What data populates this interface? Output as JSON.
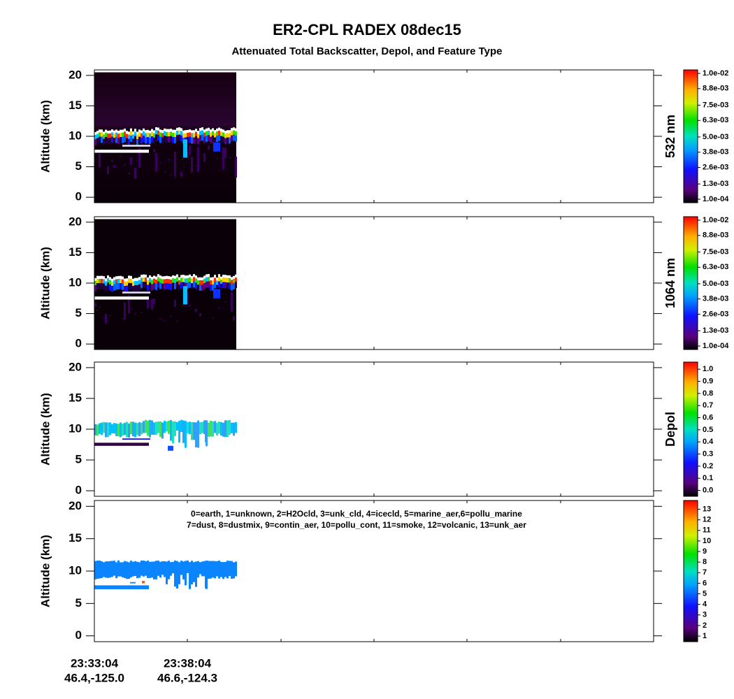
{
  "chart_data": {
    "type": "curtain",
    "title": "ER2-CPL  RADEX  08dec15",
    "subtitle": "Attenuated Total Backscatter, Depol, and Feature Type",
    "x_labels": [
      {
        "time": "23:33:04",
        "location": "46.4,-125.0"
      },
      {
        "time": "23:38:04",
        "location": "46.6,-124.3"
      }
    ],
    "annotation": [
      "0=earth, 1=unknown, 2=H2Ocld, 3=unk_cld, 4=icecld, 5=marine_aer,6=pollu_marine",
      "7=dust, 8=dustmix, 9=contin_aer, 10=pollu_cont, 11=smoke, 12=volcanic, 13=unk_aer"
    ],
    "panels": [
      {
        "ylabel": "Altitude (km)",
        "ylim": [
          -0.9,
          20.9
        ],
        "yticks": [
          0,
          5,
          10,
          15,
          20
        ],
        "colorbar_label": "532 nm",
        "clim": [
          0.0001,
          0.01
        ],
        "colorbar_ticks": [
          {
            "value": 0.0001,
            "label": "1.0e-04"
          },
          {
            "value": 0.0013,
            "label": "1.3e-03"
          },
          {
            "value": 0.0026,
            "label": "2.6e-03"
          },
          {
            "value": 0.0038,
            "label": "3.8e-03"
          },
          {
            "value": 0.005,
            "label": "5.0e-03"
          },
          {
            "value": 0.0063,
            "label": "6.3e-03"
          },
          {
            "value": 0.0075,
            "label": "7.5e-03"
          },
          {
            "value": 0.0088,
            "label": "8.8e-03"
          },
          {
            "value": 0.01,
            "label": "1.0e-02"
          }
        ]
      },
      {
        "ylabel": "Altitude (km)",
        "ylim": [
          -0.9,
          20.9
        ],
        "yticks": [
          0,
          5,
          10,
          15,
          20
        ],
        "colorbar_label": "1064 nm",
        "clim": [
          0.0001,
          0.01
        ],
        "colorbar_ticks": [
          {
            "value": 0.0001,
            "label": "1.0e-04"
          },
          {
            "value": 0.0013,
            "label": "1.3e-03"
          },
          {
            "value": 0.0026,
            "label": "2.6e-03"
          },
          {
            "value": 0.0038,
            "label": "3.8e-03"
          },
          {
            "value": 0.005,
            "label": "5.0e-03"
          },
          {
            "value": 0.0063,
            "label": "6.3e-03"
          },
          {
            "value": 0.0075,
            "label": "7.5e-03"
          },
          {
            "value": 0.0088,
            "label": "8.8e-03"
          },
          {
            "value": 0.01,
            "label": "1.0e-02"
          }
        ]
      },
      {
        "ylabel": "Altitude (km)",
        "ylim": [
          -0.9,
          20.9
        ],
        "yticks": [
          0,
          5,
          10,
          15,
          20
        ],
        "colorbar_label": "Depol",
        "clim": [
          -0.02,
          1.03
        ],
        "colorbar_ticks": [
          {
            "value": 0,
            "label": "0.0"
          },
          0.1,
          0.2,
          0.3,
          0.4,
          0.5,
          0.6,
          0.7,
          0.8,
          0.9,
          {
            "value": 1,
            "label": "1.0"
          }
        ]
      },
      {
        "ylabel": "Altitude (km)",
        "ylim": [
          -0.9,
          20.9
        ],
        "yticks": [
          0,
          5,
          10,
          15,
          20
        ],
        "clim": [
          0.8,
          13.5
        ],
        "colorbar_ticks": [
          1,
          2,
          3,
          4,
          5,
          6,
          7,
          8,
          9,
          10,
          11,
          12,
          13
        ]
      }
    ]
  }
}
